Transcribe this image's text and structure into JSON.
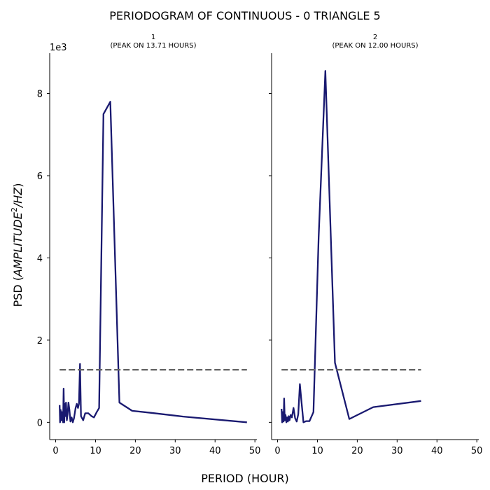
{
  "figure": {
    "title": "PERIODOGRAM OF CONTINUOUS - 0 TRIANGLE 5",
    "xlabel": "PERIOD (HOUR)",
    "ylabel_prefix": "PSD (",
    "ylabel_italic": "AMPLITUDE",
    "ylabel_sup": "2",
    "ylabel_italic2": "/HZ",
    "ylabel_suffix": ")",
    "y_offset_label": "1e3"
  },
  "chart_data": [
    {
      "type": "line",
      "title_line1": "1",
      "title_line2": "(PEAK ON 13.71 HOURS)",
      "xlim": [
        -1.5,
        50.5
      ],
      "ylim": [
        -0.42,
        8.98
      ],
      "xticks": [
        0,
        10,
        20,
        30,
        40,
        50
      ],
      "yticks": [
        0,
        2,
        4,
        6,
        8
      ],
      "tick_labels_y": [
        "0",
        "2",
        "4",
        "6",
        "8"
      ],
      "tick_labels_x": [
        "0",
        "10",
        "20",
        "30",
        "40",
        "50"
      ],
      "series": [
        {
          "color": "#191970",
          "x": [
            1.0,
            1.1,
            1.25,
            1.4,
            1.55,
            1.7,
            1.85,
            2.0,
            2.15,
            2.3,
            2.45,
            2.6,
            2.8,
            3.0,
            3.2,
            3.45,
            3.7,
            4.0,
            4.3,
            4.6,
            5.0,
            5.3,
            5.6,
            5.85,
            6.1,
            6.35,
            6.9,
            7.4,
            8.2,
            9.0,
            9.6,
            10.3,
            10.9,
            12.0,
            13.71,
            16.0,
            19.2,
            24.0,
            32.0,
            48.0
          ],
          "y": [
            0.42,
            0.0,
            0.3,
            0.05,
            0.25,
            0.1,
            0.0,
            0.82,
            0.0,
            0.45,
            0.15,
            0.48,
            0.05,
            0.2,
            0.48,
            0.3,
            0.02,
            0.12,
            0.0,
            0.1,
            0.35,
            0.45,
            0.35,
            0.45,
            1.42,
            0.15,
            0.05,
            0.22,
            0.22,
            0.15,
            0.12,
            0.25,
            0.35,
            7.5,
            7.8,
            0.48,
            0.28,
            0.23,
            0.14,
            0.0
          ]
        },
        {
          "color": "#666666",
          "dashed": true,
          "x": [
            1.0,
            48.0
          ],
          "y": [
            1.28,
            1.28
          ]
        }
      ]
    },
    {
      "type": "line",
      "title_line1": "2",
      "title_line2": "(PEAK ON 12.00 HOURS)",
      "xlim": [
        -1.5,
        50.5
      ],
      "ylim": [
        -0.42,
        8.98
      ],
      "xticks": [
        0,
        10,
        20,
        30,
        40,
        50
      ],
      "yticks": [
        0,
        2,
        4,
        6,
        8
      ],
      "tick_labels_x": [
        "0",
        "10",
        "20",
        "30",
        "40",
        "50"
      ],
      "series": [
        {
          "color": "#191970",
          "x": [
            1.0,
            1.15,
            1.3,
            1.5,
            1.65,
            1.8,
            2.0,
            2.2,
            2.4,
            2.6,
            2.8,
            3.0,
            3.3,
            3.6,
            4.0,
            4.4,
            4.8,
            5.2,
            5.6,
            6.0,
            6.5,
            7.2,
            8.0,
            9.0,
            10.3,
            12.0,
            14.4,
            18.0,
            24.0,
            36.0
          ],
          "y": [
            0.33,
            0.0,
            0.25,
            0.02,
            0.58,
            0.05,
            0.18,
            0.0,
            0.12,
            0.02,
            0.15,
            0.05,
            0.18,
            0.12,
            0.35,
            0.1,
            0.02,
            0.2,
            0.93,
            0.5,
            0.0,
            0.03,
            0.03,
            0.25,
            4.5,
            8.55,
            1.45,
            0.08,
            0.37,
            0.52
          ]
        },
        {
          "color": "#666666",
          "dashed": true,
          "x": [
            1.0,
            36.0
          ],
          "y": [
            1.28,
            1.28
          ]
        }
      ]
    }
  ]
}
